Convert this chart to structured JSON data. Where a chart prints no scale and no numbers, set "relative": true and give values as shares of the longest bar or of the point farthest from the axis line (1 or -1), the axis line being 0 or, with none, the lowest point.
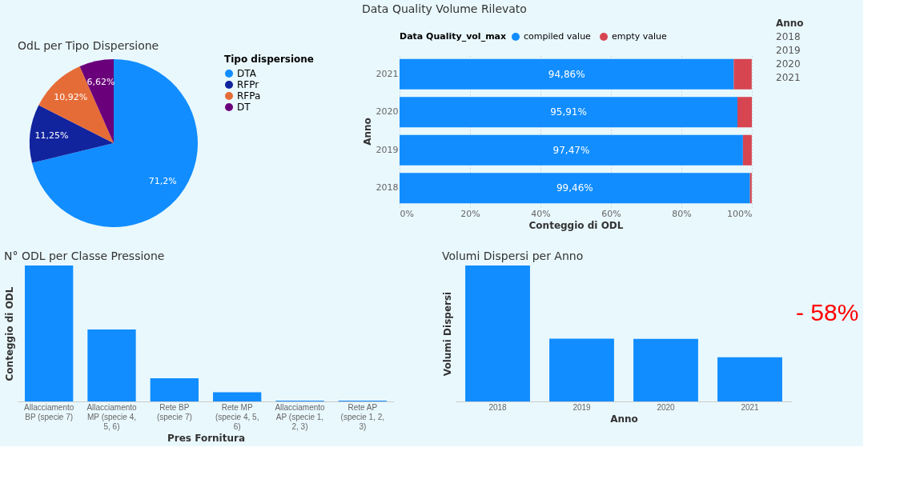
{
  "chart_data": [
    {
      "type": "pie",
      "title": "OdL per Tipo Dispersione",
      "legend_title": "Tipo dispersione",
      "legend": "right",
      "categories": [
        "DTA",
        "RFPr",
        "RFPa",
        "DT"
      ],
      "values": [
        71.2,
        11.25,
        10.92,
        6.62
      ],
      "colors": [
        "#118dff",
        "#12239e",
        "#e66c37",
        "#6b007b"
      ],
      "value_labels": [
        "71,2%",
        "11,25%",
        "10,92%",
        "6,62%"
      ]
    },
    {
      "type": "bar",
      "orientation": "horizontal",
      "stacked": true,
      "title": "Data Quality Volume Rilevato",
      "legend_title": "Data Quality_vol_max",
      "legend": "top",
      "xlabel": "Conteggio di ODL",
      "ylabel": "Anno",
      "grid": "x",
      "categories": [
        "2021",
        "2020",
        "2019",
        "2018"
      ],
      "series": [
        {
          "name": "compiled value",
          "color": "#118dff",
          "values": [
            94.86,
            95.91,
            97.47,
            99.46
          ],
          "value_labels": [
            "94,86%",
            "95,91%",
            "97,47%",
            "99,46%"
          ]
        },
        {
          "name": "empty value",
          "color": "#d64550",
          "values": [
            5.1,
            4.1,
            2.5,
            0.5
          ]
        }
      ],
      "xlim": [
        0,
        100
      ],
      "xticks": [
        {
          "value": 0,
          "label": "0%"
        },
        {
          "value": 20,
          "label": "20%"
        },
        {
          "value": 40,
          "label": "40%"
        },
        {
          "value": 60,
          "label": "60%"
        },
        {
          "value": 80,
          "label": "80%"
        },
        {
          "value": 100,
          "label": "100%"
        }
      ],
      "annotations": [
        "Anno",
        "2018",
        "2019",
        "2020",
        "2021"
      ]
    },
    {
      "type": "bar",
      "relative": true,
      "title": "N° ODL per Classe Pressione",
      "xlabel": "Pres Fornitura",
      "ylabel": "Conteggio di ODL",
      "color": "#118dff",
      "categories": [
        "Allacciamento BP (specie 7)",
        "Allacciamento MP (specie 4, 5, 6)",
        "Rete BP (specie 7)",
        "Rete MP (specie 4, 5, 6)",
        "Allacciamento AP (specie 1, 2, 3)",
        "Rete AP (specie 1, 2, 3)"
      ],
      "values": [
        1,
        0.53,
        0.17,
        0.067,
        0.006,
        0.006
      ]
    },
    {
      "type": "bar",
      "relative": true,
      "title": "Volumi Dispersi per Anno",
      "xlabel": "Anno",
      "ylabel": "Volumi Dispersi",
      "color": "#118dff",
      "categories": [
        "2018",
        "2019",
        "2020",
        "2021"
      ],
      "values": [
        1,
        0.462,
        0.46,
        0.325
      ],
      "annotations": [
        "- 58%"
      ]
    }
  ]
}
